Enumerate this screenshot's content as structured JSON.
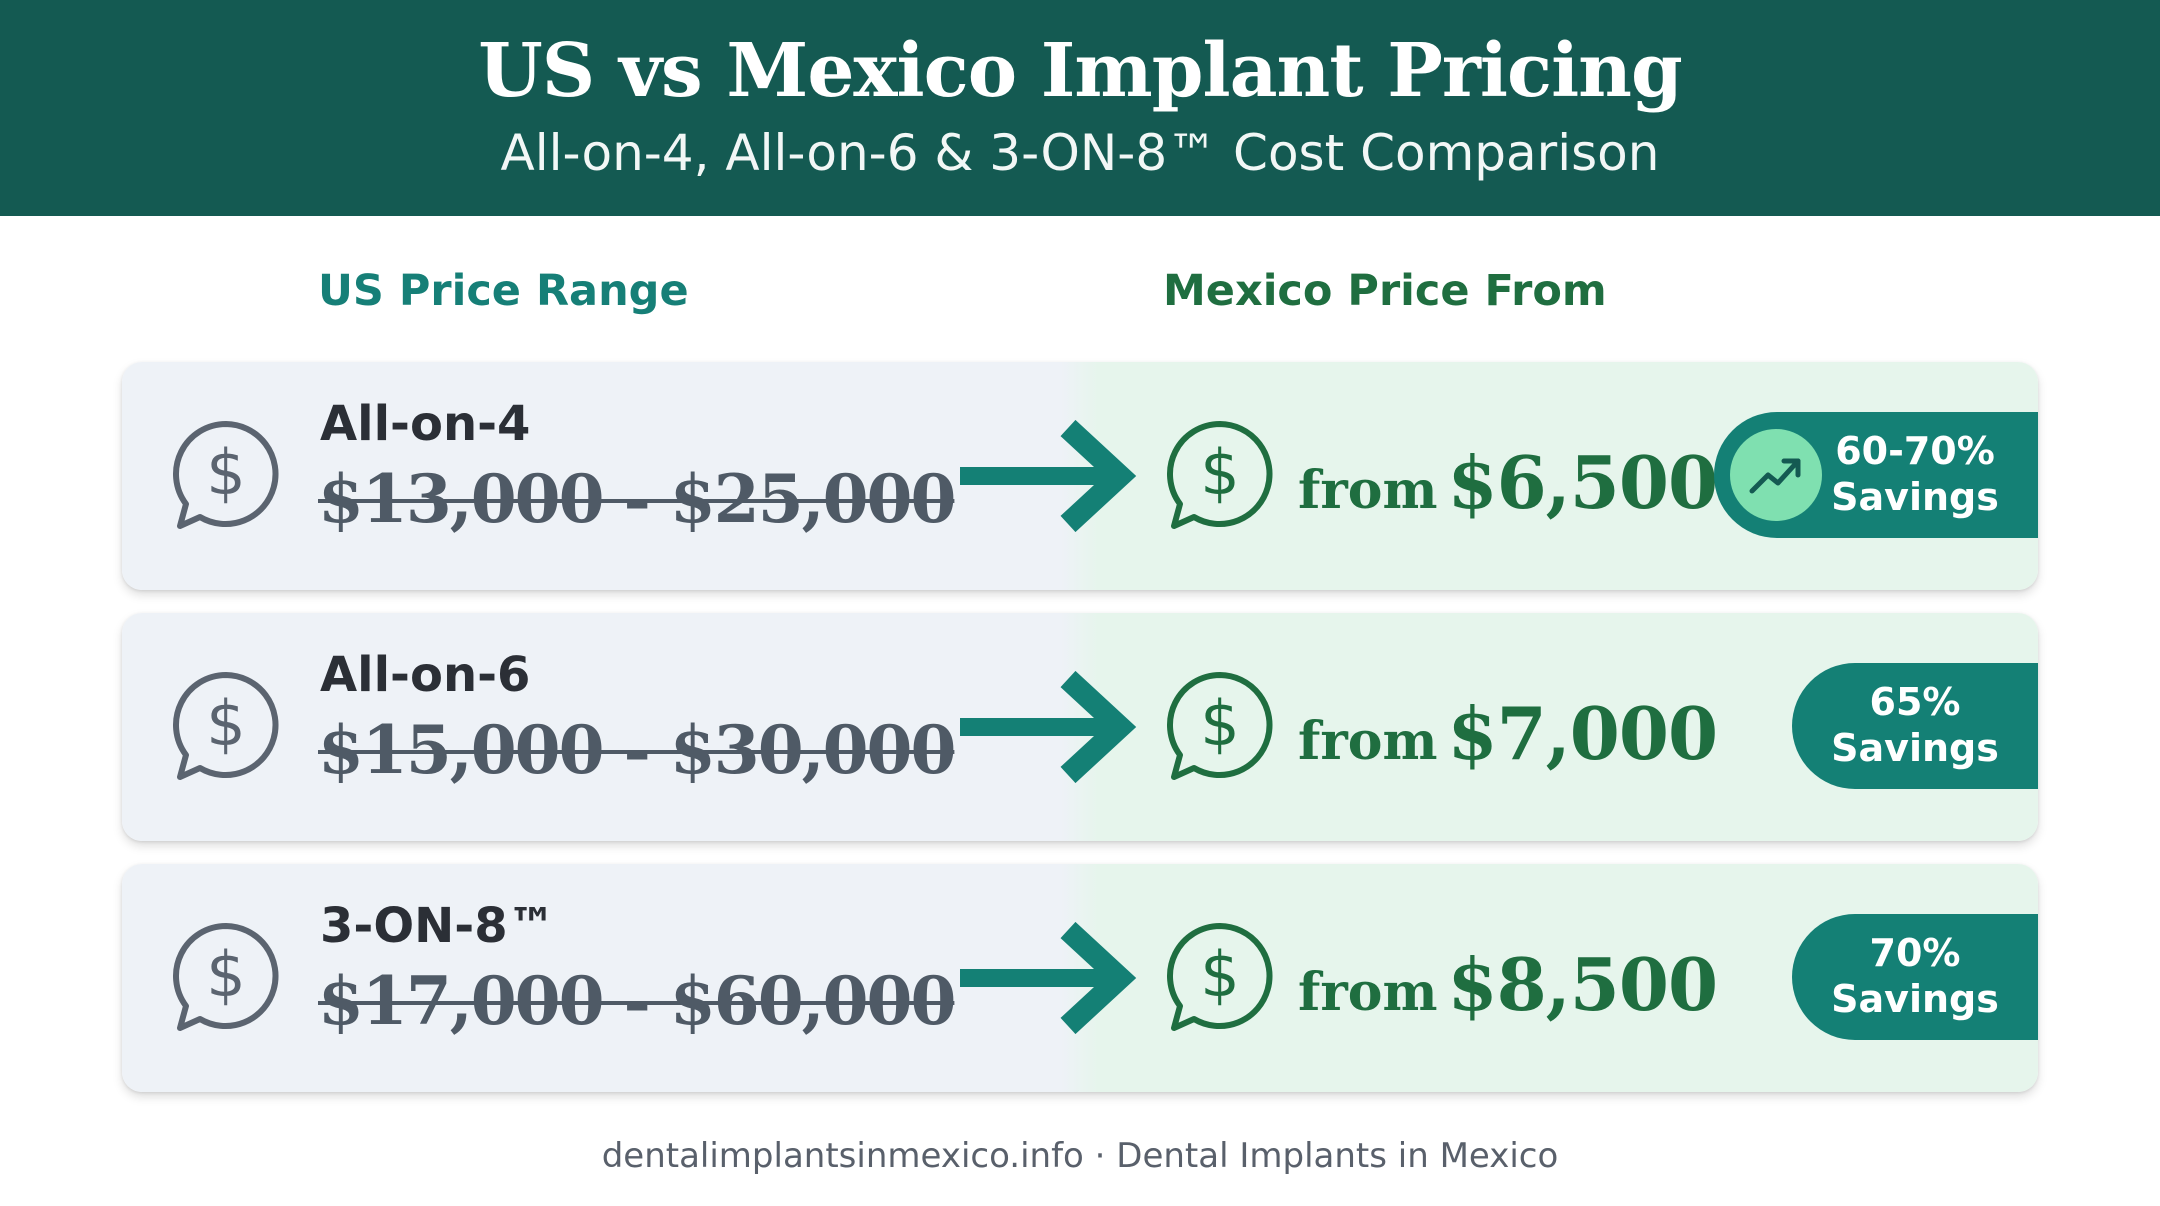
{
  "header": {
    "title": "US vs Mexico Implant Pricing",
    "subtitle": "All-on-4, All-on-6 & 3-ON-8™ Cost Comparison"
  },
  "columns": {
    "us_label": "US Price Range",
    "mexico_label": "Mexico Price From"
  },
  "rows": [
    {
      "name": "All-on-4",
      "us_range": "$13,000 - $25,000",
      "from_label": "from",
      "mexico_price": "$6,500",
      "savings_pct": "60-70%",
      "savings_label": "Savings",
      "trend_icon": true
    },
    {
      "name": "All-on-6",
      "us_range": "$15,000 - $30,000",
      "from_label": "from",
      "mexico_price": "$7,000",
      "savings_pct": "65%",
      "savings_label": "Savings",
      "trend_icon": false
    },
    {
      "name": "3-ON-8™",
      "us_range": "$17,000 - $60,000",
      "from_label": "from",
      "mexico_price": "$8,500",
      "savings_pct": "70%",
      "savings_label": "Savings",
      "trend_icon": false
    }
  ],
  "footer": "dentalimplantsinmexico.info · Dental Implants in Mexico",
  "colors": {
    "header_bg": "#145a52",
    "us_accent": "#167f77",
    "mexico_accent": "#1f6e40",
    "badge_bg": "#148075",
    "trend_bg": "#7fe0b0"
  },
  "icons": {
    "us": "dollar-chat-icon",
    "mexico": "dollar-chat-icon",
    "arrow": "arrow-right-icon",
    "trend": "trending-up-icon"
  }
}
